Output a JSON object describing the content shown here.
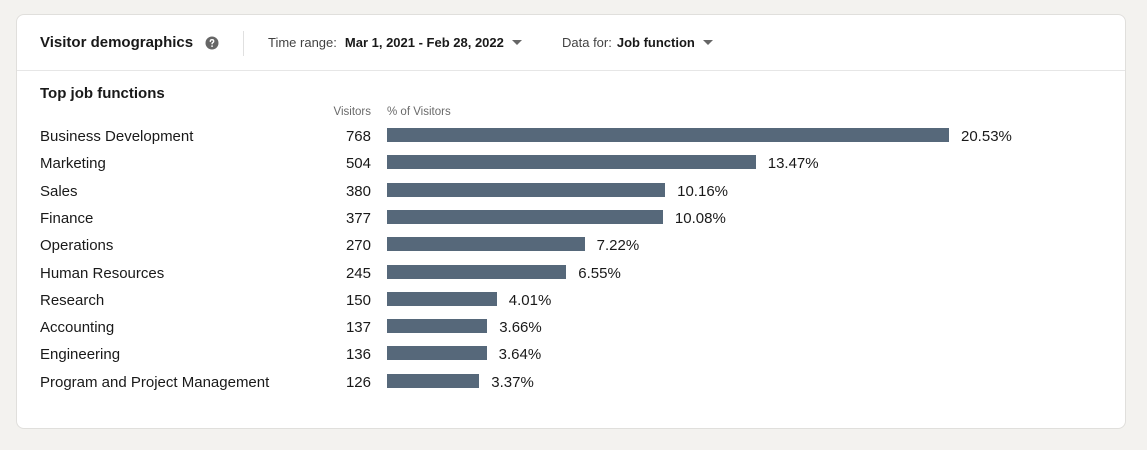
{
  "header": {
    "title": "Visitor demographics",
    "help_icon": "question-circle-icon",
    "time_range_label": "Time range:",
    "time_range_value": "Mar 1, 2021 - Feb 28, 2022",
    "data_for_label": "Data for:",
    "data_for_value": "Job function"
  },
  "section": {
    "title": "Top job functions",
    "col_visitors": "Visitors",
    "col_pct": "% of Visitors"
  },
  "colors": {
    "bar": "#56687a",
    "background": "#f3f2ef",
    "card": "#ffffff"
  },
  "chart_data": {
    "type": "bar",
    "orientation": "horizontal",
    "categories": [
      "Business Development",
      "Marketing",
      "Sales",
      "Finance",
      "Operations",
      "Human Resources",
      "Research",
      "Accounting",
      "Engineering",
      "Program and Project Management"
    ],
    "visitors": [
      "768",
      "504",
      "380",
      "377",
      "270",
      "245",
      "150",
      "137",
      "136",
      "126"
    ],
    "values": [
      20.53,
      13.47,
      10.16,
      10.08,
      7.22,
      6.55,
      4.01,
      3.66,
      3.64,
      3.37
    ],
    "value_labels": [
      "20.53%",
      "13.47%",
      "10.16%",
      "10.08%",
      "7.22%",
      "6.55%",
      "4.01%",
      "3.66%",
      "3.64%",
      "3.37%"
    ]
  }
}
